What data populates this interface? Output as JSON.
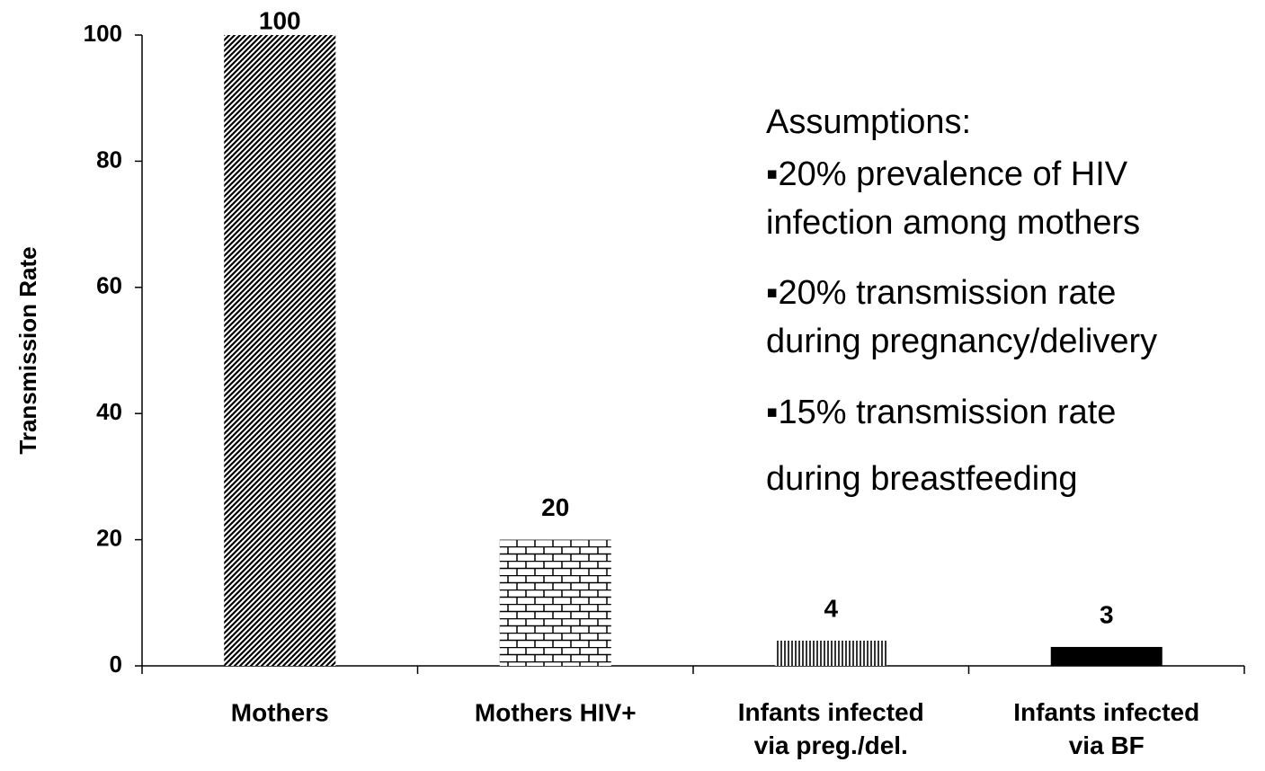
{
  "chart_data": {
    "type": "bar",
    "y_label": "Transmission Rate",
    "categories": [
      "Mothers",
      "Mothers HIV+",
      "Infants infected\nvia preg./del.",
      "Infants infected\nvia BF"
    ],
    "values": [
      100,
      20,
      4,
      3
    ],
    "patterns": [
      "diagonal",
      "brick",
      "vertical",
      "solid"
    ],
    "color": "#000000",
    "ylim": [
      0,
      100
    ],
    "yticks": [
      0,
      20,
      40,
      60,
      80,
      100
    ],
    "annotations": [
      "Assumptions:",
      "▪20% prevalence of HIV\ninfection among mothers",
      "▪20% transmission rate\nduring pregnancy/delivery",
      "▪15% transmission rate\nduring breastfeeding"
    ]
  }
}
